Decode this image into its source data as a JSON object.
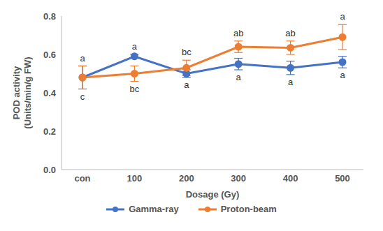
{
  "chart_data": {
    "type": "line",
    "x_label": "Dosage (Gy)",
    "y_label": "POD activity (Units/min/g FW)",
    "categories": [
      "con",
      "100",
      "200",
      "300",
      "400",
      "500"
    ],
    "ylim": [
      0,
      0.8
    ],
    "yticks": [
      {
        "value": 0,
        "label": "0.0"
      },
      0.2,
      0.4,
      0.6,
      0.8
    ],
    "grid": false,
    "legend": "bottom",
    "series": [
      {
        "name": "Gamma-ray",
        "color": "#4472c4",
        "marker": "circle",
        "values": [
          0.48,
          0.59,
          0.5,
          0.55,
          0.53,
          0.56
        ],
        "errors": [
          0.06,
          0.01,
          0.02,
          0.03,
          0.035,
          0.03
        ],
        "annotations": [
          "a",
          "a",
          "a",
          "a",
          "a",
          "a"
        ]
      },
      {
        "name": "Proton-beam",
        "color": "#ed7d31",
        "marker": "circle",
        "values": [
          0.48,
          0.5,
          0.53,
          0.64,
          0.635,
          0.69
        ],
        "errors": [
          0.06,
          0.04,
          0.04,
          0.03,
          0.035,
          0.065
        ],
        "annotations": [
          "c",
          "bc",
          "bc",
          "ab",
          "ab",
          "a"
        ]
      }
    ]
  }
}
